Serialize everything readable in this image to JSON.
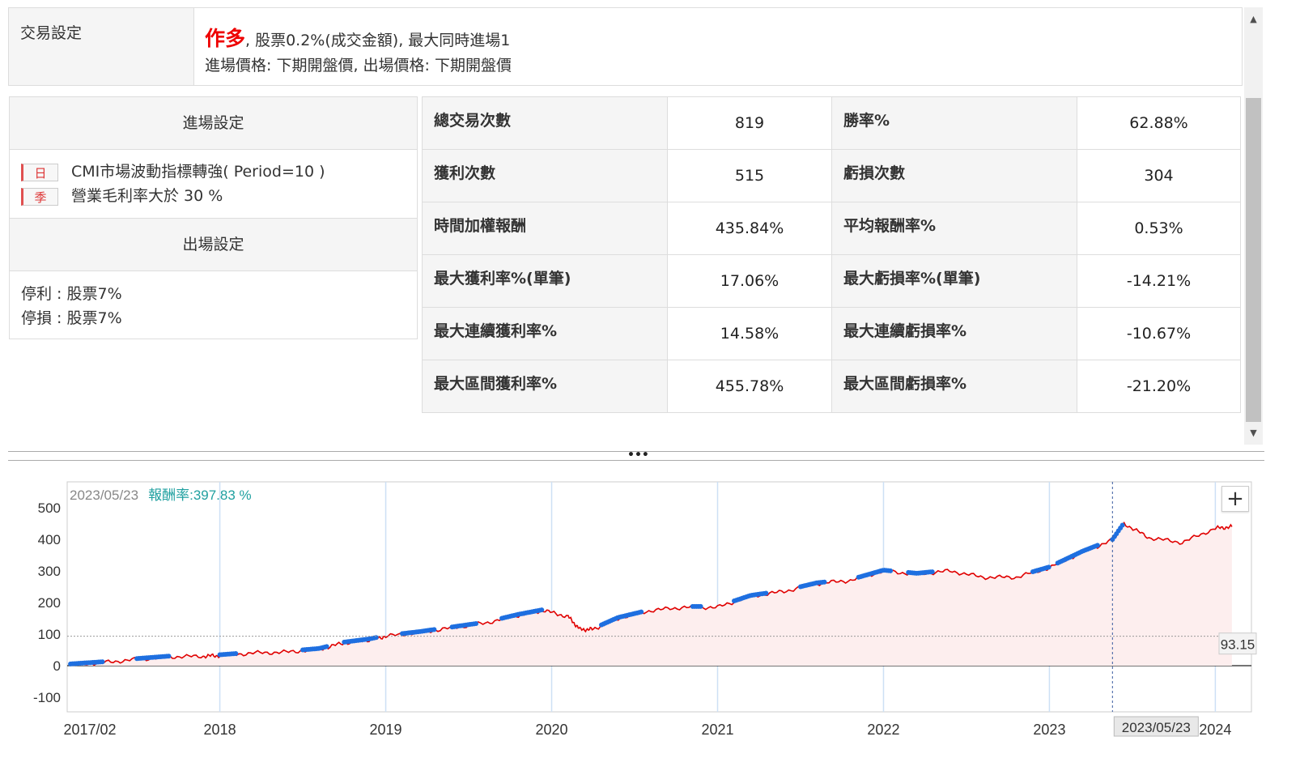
{
  "trade_settings": {
    "label": "交易設定",
    "direction": "作多",
    "line1_rest": ", 股票0.2%(成交金額), 最大同時進場1",
    "line2": "進場價格: 下期開盤價, 出場價格: 下期開盤價"
  },
  "entry": {
    "title": "進場設定",
    "conditions": [
      {
        "tag": "日",
        "text": "CMI市場波動指標轉強( Period=10 )"
      },
      {
        "tag": "季",
        "text": "營業毛利率大於 30 %"
      }
    ]
  },
  "exit": {
    "title": "出場設定",
    "lines": [
      "停利 : 股票7%",
      "停損 : 股票7%"
    ]
  },
  "stats": [
    {
      "k1": "總交易次數",
      "v1": "819",
      "k2": "勝率%",
      "v2": "62.88%",
      "v1_red": false,
      "v2_red": true
    },
    {
      "k1": "獲利次數",
      "v1": "515",
      "k2": "虧損次數",
      "v2": "304",
      "v1_red": false,
      "v2_red": false
    },
    {
      "k1": "時間加權報酬",
      "v1": "435.84%",
      "k2": "平均報酬率%",
      "v2": "0.53%",
      "v1_red": true,
      "v2_red": false
    },
    {
      "k1": "最大獲利率%(單筆)",
      "v1": "17.06%",
      "k2": "最大虧損率%(單筆)",
      "v2": "-14.21%",
      "v1_red": false,
      "v2_red": false
    },
    {
      "k1": "最大連續獲利率%",
      "v1": "14.58%",
      "k2": "最大連續虧損率%",
      "v2": "-10.67%",
      "v1_red": false,
      "v2_red": false
    },
    {
      "k1": "最大區間獲利率%",
      "v1": "455.78%",
      "k2": "最大區間虧損率%",
      "v2": "-21.20%",
      "v1_red": false,
      "v2_red": false
    }
  ],
  "chart_legend": {
    "date": "2023/05/23",
    "return_label": "報酬率:397.83 %"
  },
  "splitter_glyph": "•••",
  "zoom_button": "+",
  "scroll_up": "▲",
  "scroll_down": "▼",
  "colors": {
    "line": "#e00000",
    "markers": "#1e6fe0",
    "fill": "#fdeeee",
    "accent_red": "#e00000",
    "legend_teal": "#20a0a0"
  },
  "chart_data": {
    "type": "line",
    "x_ticks": [
      "2017/02",
      "2018",
      "2019",
      "2020",
      "2021",
      "2022",
      "2023",
      "2024"
    ],
    "y_ticks": [
      -100,
      0,
      100,
      200,
      300,
      400,
      500
    ],
    "ylim": [
      -100,
      500
    ],
    "cursor_label": "2023/05/23",
    "reference_value_label": "93.15",
    "series": [
      {
        "x": [
          2017.1,
          2017.3,
          2017.5,
          2017.7,
          2017.9,
          2018.0,
          2018.2,
          2018.4,
          2018.6,
          2018.75,
          2018.9,
          2019.0,
          2019.2,
          2019.4,
          2019.6,
          2019.8,
          2019.95,
          2020.1,
          2020.17,
          2020.25,
          2020.4,
          2020.6,
          2020.8,
          2021.0,
          2021.2,
          2021.4,
          2021.6,
          2021.8,
          2022.0,
          2022.2,
          2022.4,
          2022.6,
          2022.8,
          2023.0,
          2023.2,
          2023.38,
          2023.45,
          2023.6,
          2023.8,
          2024.0,
          2024.1
        ],
        "y": [
          3,
          10,
          20,
          28,
          30,
          32,
          40,
          43,
          52,
          72,
          82,
          93,
          105,
          120,
          135,
          160,
          175,
          155,
          115,
          115,
          150,
          175,
          185,
          185,
          220,
          235,
          260,
          270,
          300,
          290,
          300,
          280,
          280,
          310,
          360,
          397,
          450,
          405,
          390,
          435,
          440
        ]
      }
    ],
    "marker_segments": [
      [
        2017.1,
        2017.3
      ],
      [
        2017.5,
        2017.7
      ],
      [
        2018.0,
        2018.1
      ],
      [
        2018.5,
        2018.65
      ],
      [
        2018.75,
        2018.95
      ],
      [
        2019.1,
        2019.3
      ],
      [
        2019.4,
        2019.55
      ],
      [
        2019.7,
        2019.95
      ],
      [
        2020.3,
        2020.55
      ],
      [
        2020.85,
        2020.9
      ],
      [
        2021.1,
        2021.3
      ],
      [
        2021.5,
        2021.65
      ],
      [
        2021.85,
        2022.05
      ],
      [
        2022.15,
        2022.3
      ],
      [
        2022.9,
        2023.0
      ],
      [
        2023.05,
        2023.3
      ],
      [
        2023.38,
        2023.45
      ]
    ]
  }
}
